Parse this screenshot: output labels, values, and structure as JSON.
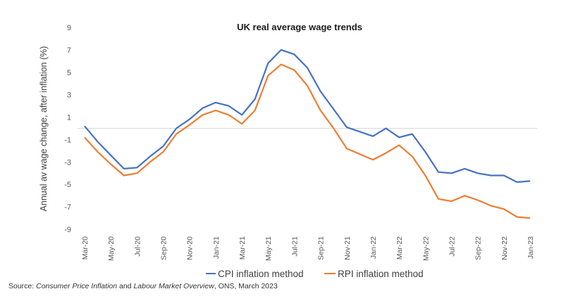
{
  "chart_data": {
    "type": "line",
    "title": "UK real average wage trends",
    "xlabel": "",
    "ylabel": "Annual av wage change, after inflation (%)",
    "ylim": [
      -9,
      9
    ],
    "yticks": [
      9,
      7,
      5,
      3,
      1,
      -1,
      -3,
      -5,
      -7,
      -9
    ],
    "grid": false,
    "zero_line": true,
    "legend_position": "bottom",
    "x": [
      "Mar-20",
      "Apr-20",
      "May-20",
      "Jun-20",
      "Jul-20",
      "Aug-20",
      "Sep-20",
      "Oct-20",
      "Nov-20",
      "Dec-20",
      "Jan-21",
      "Feb-21",
      "Mar-21",
      "Apr-21",
      "May-21",
      "Jun-21",
      "Jul-21",
      "Aug-21",
      "Sep-21",
      "Oct-21",
      "Nov-21",
      "Dec-21",
      "Jan-22",
      "Feb-22",
      "Mar-22",
      "Apr-22",
      "May-22",
      "Jun-22",
      "Jul-22",
      "Aug-22",
      "Sep-22",
      "Oct-22",
      "Nov-22",
      "Dec-22",
      "Jan-23"
    ],
    "xtick_labels": [
      "Mar-20",
      "May-20",
      "Jul-20",
      "Sep-20",
      "Nov-20",
      "Jan-21",
      "Mar-21",
      "May-21",
      "Jul-21",
      "Sep-21",
      "Nov-21",
      "Jan-22",
      "Mar-22",
      "May-22",
      "Jul-22",
      "Sep-22",
      "Nov-22",
      "Jan-23"
    ],
    "series": [
      {
        "name": "CPI inflation method",
        "color": "#4472c4",
        "values": [
          0.2,
          -1.2,
          -2.4,
          -3.6,
          -3.5,
          -2.5,
          -1.6,
          0.0,
          0.8,
          1.8,
          2.3,
          2.0,
          1.2,
          2.6,
          5.8,
          7.0,
          6.6,
          5.4,
          3.3,
          1.7,
          0.1,
          -0.3,
          -0.7,
          0.0,
          -0.8,
          -0.5,
          -2.1,
          -3.9,
          -4.0,
          -3.6,
          -4.0,
          -4.2,
          -4.2,
          -4.8,
          -4.7
        ]
      },
      {
        "name": "RPI inflation method",
        "color": "#ed7d31",
        "values": [
          -0.8,
          -2.1,
          -3.2,
          -4.2,
          -4.0,
          -3.0,
          -2.1,
          -0.5,
          0.3,
          1.2,
          1.6,
          1.2,
          0.4,
          1.6,
          4.7,
          5.7,
          5.2,
          3.8,
          1.6,
          0.0,
          -1.8,
          -2.3,
          -2.8,
          -2.2,
          -1.5,
          -2.5,
          -4.2,
          -6.3,
          -6.5,
          -6.0,
          -6.4,
          -6.9,
          -7.2,
          -7.9,
          -8.0
        ]
      }
    ]
  },
  "source": {
    "prefix": "Source: ",
    "part1": "Consumer Price Inflation",
    "mid": " and ",
    "part2": "Labour Market Overview",
    "suffix": ", ONS, March 2023"
  }
}
